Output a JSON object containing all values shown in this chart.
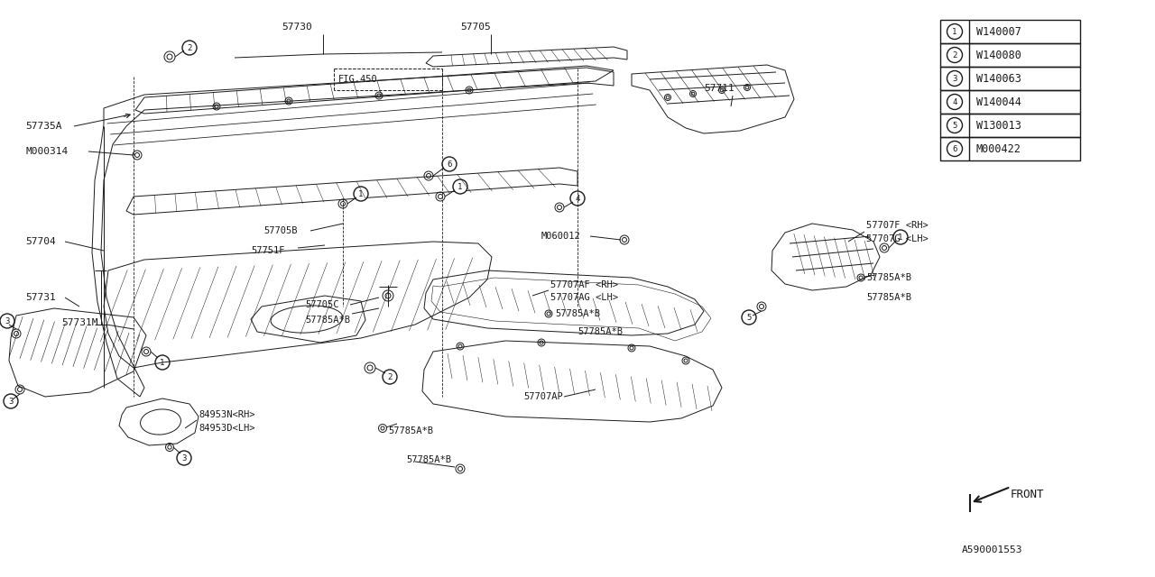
{
  "bg_color": "#ffffff",
  "line_color": "#1a1a1a",
  "legend_items": [
    {
      "num": 1,
      "code": "W140007"
    },
    {
      "num": 2,
      "code": "W140080"
    },
    {
      "num": 3,
      "code": "W140063"
    },
    {
      "num": 4,
      "code": "W140044"
    },
    {
      "num": 5,
      "code": "W130013"
    },
    {
      "num": 6,
      "code": "M000422"
    }
  ],
  "footer_code": "A590001553",
  "front_label": "FRONT"
}
